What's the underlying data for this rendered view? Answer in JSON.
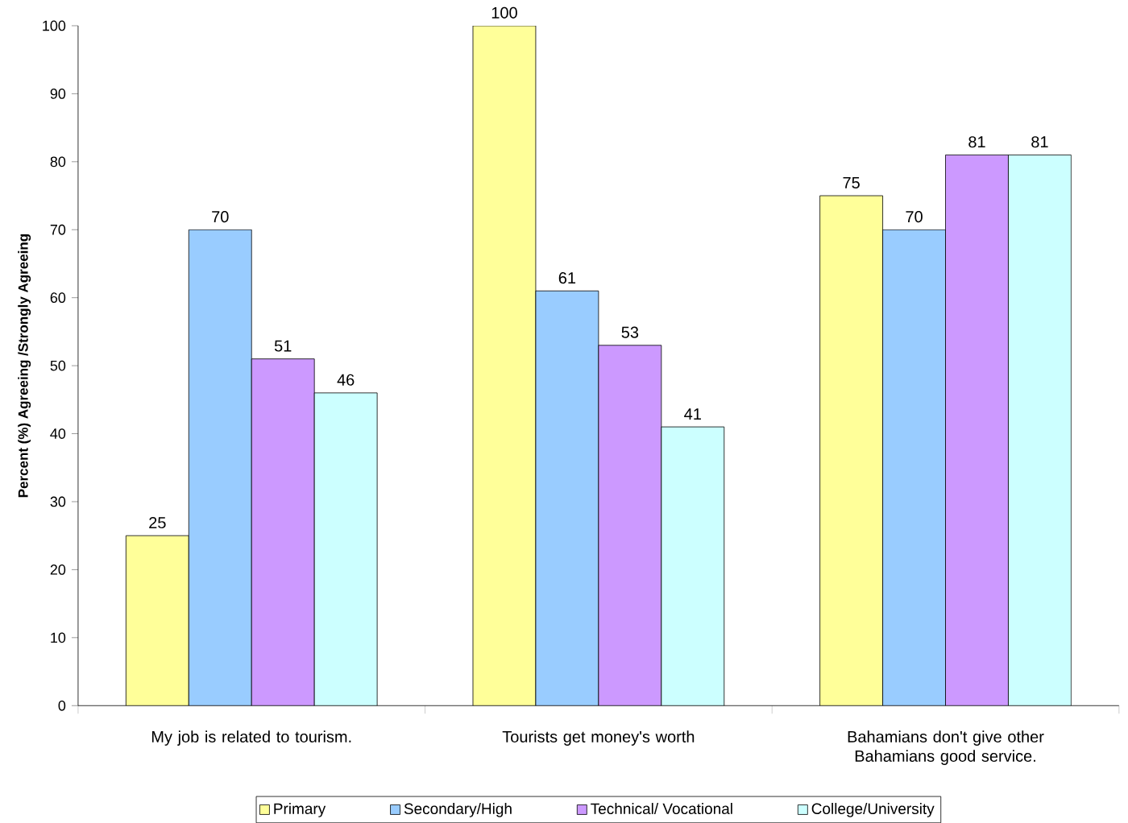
{
  "chart_data": {
    "type": "bar",
    "ylabel": "Percent (%) Agreeing /Strongly Agreeing",
    "categories": [
      "My job is related to tourism.",
      "Tourists get money's worth",
      "Bahamians don't give other Bahamians good service."
    ],
    "series": [
      {
        "name": "Primary",
        "color": "#ffff99",
        "values": [
          25,
          100,
          75
        ]
      },
      {
        "name": "Secondary/High",
        "color": "#99ccff",
        "values": [
          70,
          61,
          70
        ]
      },
      {
        "name": "Technical/ Vocational",
        "color": "#cc99ff",
        "values": [
          51,
          53,
          81
        ]
      },
      {
        "name": "College/University",
        "color": "#ccffff",
        "values": [
          46,
          41,
          81
        ]
      }
    ],
    "ylim": [
      0,
      100
    ],
    "yticks": [
      0,
      10,
      20,
      30,
      40,
      50,
      60,
      70,
      80,
      90,
      100
    ],
    "data_labels": true,
    "grid": false,
    "legend": "bottom"
  }
}
